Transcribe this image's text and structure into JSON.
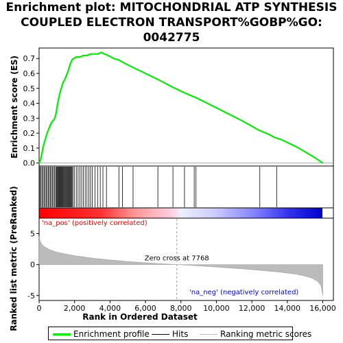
{
  "title_lines": [
    "Enrichment plot: MITOCHONDRIAL ATP SYNTHESIS",
    "COUPLED ELECTRON TRANSPORT%GOBP%GO:",
    "0042775"
  ],
  "legend": {
    "items": [
      {
        "label": "Enrichment profile",
        "color": "#00ee00"
      },
      {
        "label": "Hits",
        "color": "#000000"
      },
      {
        "label": "Ranking metric scores",
        "color": "#bbbbbb"
      }
    ]
  },
  "colors": {
    "enrichment": "#00ee00",
    "hits": "#000000",
    "metric": "#bbbbbb",
    "pos_label": "#ff0000",
    "neg_label": "#0000ff"
  },
  "chart_data": {
    "type": "line",
    "xlabel": "Rank in Ordered Dataset",
    "xlim": [
      0,
      16600
    ],
    "x_ticks": [
      0,
      2000,
      4000,
      6000,
      8000,
      10000,
      12000,
      14000,
      16000
    ],
    "x_tick_labels": [
      "0",
      "2,000",
      "4,000",
      "6,000",
      "8,000",
      "10,000",
      "12,000",
      "14,000",
      "16,000"
    ],
    "es_panel": {
      "ylabel": "Enrichment score (ES)",
      "ylim": [
        -0.02,
        0.77
      ],
      "y_ticks": [
        0.0,
        0.1,
        0.2,
        0.3,
        0.4,
        0.5,
        0.6,
        0.7
      ],
      "y_tick_labels": [
        "0.0",
        "0.1",
        "0.2",
        "0.3",
        "0.4",
        "0.5",
        "0.6",
        "0.7"
      ],
      "series": [
        {
          "name": "Enrichment profile",
          "x": [
            0,
            80,
            150,
            250,
            350,
            450,
            550,
            650,
            750,
            850,
            950,
            1050,
            1150,
            1250,
            1350,
            1450,
            1550,
            1650,
            1750,
            1850,
            1950,
            2100,
            2300,
            2500,
            2700,
            2900,
            3100,
            3300,
            3500,
            3700,
            3900,
            4200,
            4500,
            4800,
            5300,
            6000,
            6700,
            7500,
            8200,
            8800,
            9500,
            10500,
            11500,
            12400,
            13000,
            13300,
            13600,
            14500,
            15500,
            16000
          ],
          "y": [
            0.0,
            0.02,
            0.06,
            0.12,
            0.16,
            0.2,
            0.23,
            0.26,
            0.28,
            0.29,
            0.33,
            0.4,
            0.46,
            0.5,
            0.54,
            0.56,
            0.59,
            0.62,
            0.66,
            0.69,
            0.7,
            0.71,
            0.71,
            0.72,
            0.72,
            0.73,
            0.73,
            0.73,
            0.74,
            0.73,
            0.72,
            0.7,
            0.69,
            0.67,
            0.64,
            0.6,
            0.56,
            0.51,
            0.47,
            0.44,
            0.4,
            0.34,
            0.28,
            0.22,
            0.19,
            0.17,
            0.16,
            0.11,
            0.04,
            0.0
          ]
        }
      ]
    },
    "hits": [
      40,
      100,
      160,
      220,
      280,
      340,
      400,
      460,
      520,
      580,
      640,
      700,
      760,
      820,
      880,
      940,
      980,
      1020,
      1060,
      1100,
      1140,
      1180,
      1220,
      1260,
      1300,
      1340,
      1380,
      1420,
      1460,
      1500,
      1540,
      1580,
      1620,
      1660,
      1700,
      1740,
      1780,
      1820,
      1860,
      1920,
      2000,
      2100,
      2200,
      2300,
      2400,
      2500,
      2600,
      2700,
      2800,
      2900,
      3000,
      3150,
      3300,
      3450,
      3600,
      3800,
      4500,
      4700,
      5300,
      6700,
      7550,
      8200,
      8750,
      8850,
      12450,
      13400
    ],
    "metric_panel": {
      "ylabel": "Ranked list metric (PreRanked)",
      "ylim": [
        -5.8,
        7.5
      ],
      "y_ticks": [
        -5,
        0,
        5
      ],
      "y_tick_labels": [
        "-5",
        "0",
        "5"
      ],
      "series": [
        {
          "name": "Ranking metric scores",
          "x": [
            0,
            50,
            150,
            300,
            600,
            1000,
            1500,
            2000,
            3000,
            4000,
            5000,
            6000,
            7000,
            7768,
            8500,
            9500,
            10500,
            11500,
            12500,
            13500,
            14500,
            15000,
            15400,
            15700,
            15900,
            16000
          ],
          "y": [
            4.5,
            3.9,
            3.3,
            2.9,
            2.4,
            2.0,
            1.7,
            1.45,
            1.05,
            0.75,
            0.5,
            0.3,
            0.12,
            0.0,
            -0.12,
            -0.3,
            -0.5,
            -0.7,
            -0.95,
            -1.2,
            -1.55,
            -1.85,
            -2.2,
            -2.7,
            -3.4,
            -5.0
          ]
        }
      ]
    },
    "zero_cross": 7768,
    "annotations": {
      "zero_cross_label": "Zero cross at 7768",
      "pos_label": "'na_pos' (positively correlated)",
      "neg_label": "'na_neg' (negatively correlated)"
    }
  }
}
